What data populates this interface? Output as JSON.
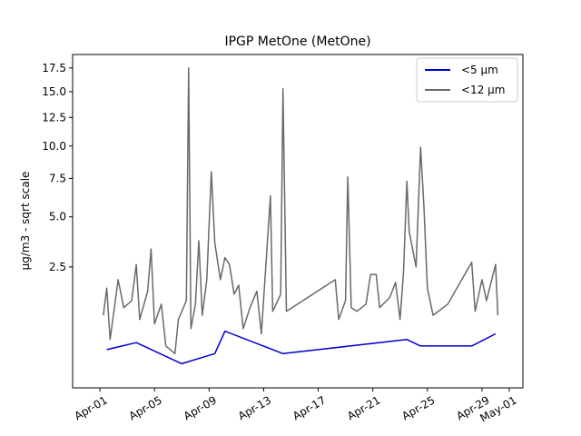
{
  "chart_data": {
    "type": "line",
    "title": "IPGP MetOne (MetOne)",
    "xlabel": "",
    "ylabel": "µg/m3 - sqrt scale",
    "y_scale": "sqrt",
    "ylim": [
      0,
      19
    ],
    "xlim": [
      "2024-03-30",
      "2024-05-02"
    ],
    "grid": false,
    "legend_position": "top-right",
    "y_ticks": [
      2.5,
      5.0,
      7.5,
      10.0,
      12.5,
      15.0,
      17.5
    ],
    "y_tick_labels": [
      "2.5",
      "5.0",
      "7.5",
      "10.0",
      "12.5",
      "15.0",
      "17.5"
    ],
    "x_ticks": [
      "2024-04-01",
      "2024-04-05",
      "2024-04-09",
      "2024-04-13",
      "2024-04-17",
      "2024-04-21",
      "2024-04-25",
      "2024-04-29",
      "2024-05-01"
    ],
    "x_tick_labels": [
      "Apr-01",
      "Apr-05",
      "Apr-09",
      "Apr-13",
      "Apr-17",
      "Apr-21",
      "Apr-25",
      "Apr-29",
      "May-01"
    ],
    "series": [
      {
        "name": "<12 µm",
        "color": "#696969",
        "points": [
          [
            "2024-04-01 06:00",
            0.9
          ],
          [
            "2024-04-01 12:00",
            1.7
          ],
          [
            "2024-04-01 18:00",
            0.4
          ],
          [
            "2024-04-02 08:00",
            2.0
          ],
          [
            "2024-04-02 18:00",
            1.1
          ],
          [
            "2024-04-03 08:00",
            1.3
          ],
          [
            "2024-04-03 16:00",
            2.6
          ],
          [
            "2024-04-03 22:00",
            0.8
          ],
          [
            "2024-04-04 12:00",
            1.6
          ],
          [
            "2024-04-04 18:00",
            3.3
          ],
          [
            "2024-04-05 00:00",
            0.7
          ],
          [
            "2024-04-05 12:00",
            1.2
          ],
          [
            "2024-04-05 20:00",
            0.3
          ],
          [
            "2024-04-06 12:00",
            0.2
          ],
          [
            "2024-04-06 18:00",
            0.8
          ],
          [
            "2024-04-07 08:00",
            1.3
          ],
          [
            "2024-04-07 12:00",
            17.5
          ],
          [
            "2024-04-07 16:00",
            0.6
          ],
          [
            "2024-04-08 00:00",
            1.2
          ],
          [
            "2024-04-08 06:00",
            3.7
          ],
          [
            "2024-04-08 12:00",
            0.9
          ],
          [
            "2024-04-08 20:00",
            2.0
          ],
          [
            "2024-04-09 04:00",
            8.0
          ],
          [
            "2024-04-09 10:00",
            3.6
          ],
          [
            "2024-04-09 20:00",
            2.0
          ],
          [
            "2024-04-10 04:00",
            2.9
          ],
          [
            "2024-04-10 12:00",
            2.6
          ],
          [
            "2024-04-10 20:00",
            1.5
          ],
          [
            "2024-04-11 04:00",
            1.8
          ],
          [
            "2024-04-11 12:00",
            0.6
          ],
          [
            "2024-04-12 00:00",
            1.1
          ],
          [
            "2024-04-12 12:00",
            1.6
          ],
          [
            "2024-04-12 20:00",
            0.5
          ],
          [
            "2024-04-13 12:00",
            6.3
          ],
          [
            "2024-04-13 16:00",
            1.0
          ],
          [
            "2024-04-14 06:00",
            1.5
          ],
          [
            "2024-04-14 10:00",
            15.3
          ],
          [
            "2024-04-14 16:00",
            1.0
          ],
          [
            "2024-04-18 06:00",
            2.0
          ],
          [
            "2024-04-18 12:00",
            0.8
          ],
          [
            "2024-04-19 00:00",
            1.3
          ],
          [
            "2024-04-19 04:00",
            7.6
          ],
          [
            "2024-04-19 10:00",
            1.1
          ],
          [
            "2024-04-19 20:00",
            1.0
          ],
          [
            "2024-04-20 12:00",
            1.2
          ],
          [
            "2024-04-20 20:00",
            2.2
          ],
          [
            "2024-04-21 06:00",
            2.2
          ],
          [
            "2024-04-21 12:00",
            1.1
          ],
          [
            "2024-04-22 06:00",
            1.4
          ],
          [
            "2024-04-22 16:00",
            1.9
          ],
          [
            "2024-04-23 00:00",
            0.8
          ],
          [
            "2024-04-23 06:00",
            2.3
          ],
          [
            "2024-04-23 12:00",
            7.3
          ],
          [
            "2024-04-23 16:00",
            4.2
          ],
          [
            "2024-04-24 04:00",
            2.5
          ],
          [
            "2024-04-24 12:00",
            9.9
          ],
          [
            "2024-04-24 18:00",
            5.6
          ],
          [
            "2024-04-25 00:00",
            1.7
          ],
          [
            "2024-04-25 10:00",
            0.9
          ],
          [
            "2024-04-26 12:00",
            1.2
          ],
          [
            "2024-04-28 06:00",
            2.7
          ],
          [
            "2024-04-28 12:00",
            1.0
          ],
          [
            "2024-04-29 00:00",
            2.0
          ],
          [
            "2024-04-29 08:00",
            1.3
          ],
          [
            "2024-04-29 16:00",
            1.9
          ],
          [
            "2024-04-30 00:00",
            2.6
          ],
          [
            "2024-04-30 04:00",
            0.9
          ]
        ]
      },
      {
        "name": "<5 µm",
        "color": "#0000cc",
        "points": [
          [
            "2024-04-01 12:00",
            0.25
          ],
          [
            "2024-04-03 16:00",
            0.35
          ],
          [
            "2024-04-07 00:00",
            0.1
          ],
          [
            "2024-04-09 10:00",
            0.2
          ],
          [
            "2024-04-10 04:00",
            0.55
          ],
          [
            "2024-04-14 10:00",
            0.2
          ],
          [
            "2024-04-23 12:00",
            0.4
          ],
          [
            "2024-04-24 12:00",
            0.3
          ],
          [
            "2024-04-28 06:00",
            0.3
          ],
          [
            "2024-04-30 00:00",
            0.5
          ]
        ]
      }
    ]
  }
}
